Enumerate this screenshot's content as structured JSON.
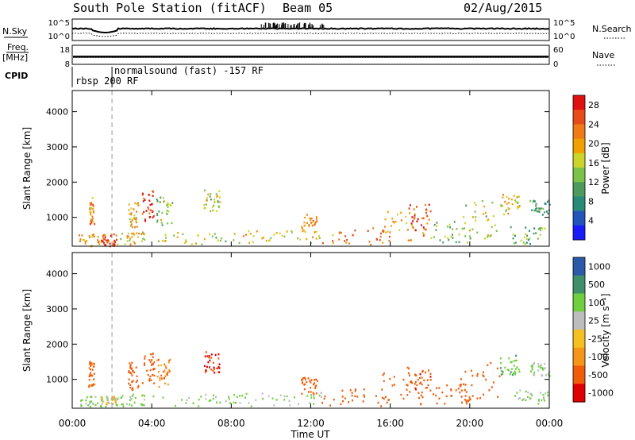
{
  "header": {
    "station": "South Pole Station (fitACF)",
    "beam": "Beam 05",
    "date": "02/Aug/2015"
  },
  "status_panels": {
    "nsky_label": "N.Sky",
    "nsky_ticks": [
      "10^5",
      "10^0"
    ],
    "nsearch_label": "N.Search",
    "nsearch_ticks": [
      "10^5",
      "10^0"
    ],
    "freq_label": "Freq.",
    "freq_unit": "[MHz]",
    "freq_ticks": [
      "18",
      "8"
    ],
    "nave_label": "Nave",
    "nave_ticks": [
      "60",
      "0"
    ],
    "cpid_label": "CPID",
    "cpid_entries": [
      {
        "text": "rbsp 200 RF",
        "start_hour": 0.0
      },
      {
        "text": "normalsound (fast) -157 RF",
        "start_hour": 2.0
      }
    ],
    "freq_mhz": 12.0,
    "nave_level": 22
  },
  "chart_data": [
    {
      "type": "heatmap",
      "title": "",
      "xlabel": "",
      "ylabel": "Slant Range [km]",
      "xlim": [
        0,
        24
      ],
      "ylim": [
        180,
        4600
      ],
      "yticks": [
        "1000",
        "2000",
        "3000",
        "4000"
      ],
      "colorbar": {
        "label": "Power [dB]",
        "ticks": [
          "28",
          "24",
          "20",
          "16",
          "12",
          "8",
          "4"
        ],
        "range": [
          0,
          30
        ]
      },
      "scatter_regions": [
        {
          "x": [
            0.3,
            1.9
          ],
          "y": [
            200,
            550
          ],
          "value": 20
        },
        {
          "x": [
            1.4,
            2.2
          ],
          "y": [
            200,
            550
          ],
          "value": 27
        },
        {
          "x": [
            0.8,
            1.1
          ],
          "y": [
            800,
            1600
          ],
          "value": 22
        },
        {
          "x": [
            2.2,
            3.6
          ],
          "y": [
            250,
            600
          ],
          "value": 18
        },
        {
          "x": [
            3.5,
            4.1
          ],
          "y": [
            900,
            1800
          ],
          "value": 26
        },
        {
          "x": [
            2.8,
            3.3
          ],
          "y": [
            700,
            1500
          ],
          "value": 18
        },
        {
          "x": [
            4.2,
            5.0
          ],
          "y": [
            800,
            1600
          ],
          "value": 14
        },
        {
          "x": [
            4.0,
            8.5
          ],
          "y": [
            250,
            600
          ],
          "value": 16
        },
        {
          "x": [
            6.6,
            7.4
          ],
          "y": [
            1200,
            1800
          ],
          "value": 14
        },
        {
          "x": [
            8.5,
            12.5
          ],
          "y": [
            250,
            650
          ],
          "value": 18
        },
        {
          "x": [
            11.5,
            12.3
          ],
          "y": [
            600,
            1100
          ],
          "value": 22
        },
        {
          "x": [
            12.5,
            16.0
          ],
          "y": [
            250,
            750
          ],
          "value": 22
        },
        {
          "x": [
            15.5,
            17.9
          ],
          "y": [
            300,
            1200
          ],
          "value": 20
        },
        {
          "x": [
            16.8,
            18.0
          ],
          "y": [
            500,
            1400
          ],
          "value": 26
        },
        {
          "x": [
            18.0,
            20.0
          ],
          "y": [
            300,
            900
          ],
          "value": 14
        },
        {
          "x": [
            19.5,
            21.5
          ],
          "y": [
            400,
            1500
          ],
          "value": 16
        },
        {
          "x": [
            21.5,
            22.5
          ],
          "y": [
            1100,
            1700
          ],
          "value": 18
        },
        {
          "x": [
            22.0,
            23.9
          ],
          "y": [
            250,
            750
          ],
          "value": 12
        },
        {
          "x": [
            23.0,
            24.0
          ],
          "y": [
            1100,
            1500
          ],
          "value": 10
        }
      ]
    },
    {
      "type": "heatmap",
      "title": "",
      "xlabel": "Time UT",
      "ylabel": "Slant Range [km]",
      "xlim": [
        0,
        24
      ],
      "ylim": [
        180,
        4600
      ],
      "xticks": [
        "00:00",
        "04:00",
        "08:00",
        "12:00",
        "16:00",
        "20:00",
        "00:00"
      ],
      "yticks": [
        "1000",
        "2000",
        "3000",
        "4000"
      ],
      "colorbar": {
        "label": "Velocity [m s⁻¹]",
        "ticks": [
          "1000",
          "500",
          "100",
          "25",
          "-25",
          "-100",
          "-500",
          "-1000"
        ],
        "range": [
          -1000,
          1000
        ]
      },
      "scatter_regions": [
        {
          "x": [
            0.3,
            2.0
          ],
          "y": [
            200,
            550
          ],
          "value": 150
        },
        {
          "x": [
            1.4,
            2.2
          ],
          "y": [
            300,
            550
          ],
          "value": 40
        },
        {
          "x": [
            0.8,
            1.1
          ],
          "y": [
            800,
            1600
          ],
          "value": -150
        },
        {
          "x": [
            2.2,
            3.6
          ],
          "y": [
            250,
            600
          ],
          "value": 120
        },
        {
          "x": [
            3.5,
            4.1
          ],
          "y": [
            900,
            1800
          ],
          "value": -300
        },
        {
          "x": [
            2.8,
            3.3
          ],
          "y": [
            700,
            1500
          ],
          "value": -200
        },
        {
          "x": [
            4.2,
            5.0
          ],
          "y": [
            800,
            1600
          ],
          "value": -120
        },
        {
          "x": [
            4.0,
            8.5
          ],
          "y": [
            250,
            600
          ],
          "value": 150
        },
        {
          "x": [
            6.6,
            7.4
          ],
          "y": [
            1200,
            1800
          ],
          "value": -600
        },
        {
          "x": [
            8.5,
            12.5
          ],
          "y": [
            250,
            650
          ],
          "value": 120
        },
        {
          "x": [
            11.5,
            12.3
          ],
          "y": [
            600,
            1100
          ],
          "value": -200
        },
        {
          "x": [
            12.5,
            16.0
          ],
          "y": [
            250,
            750
          ],
          "value": -250
        },
        {
          "x": [
            15.5,
            17.9
          ],
          "y": [
            300,
            1200
          ],
          "value": -300
        },
        {
          "x": [
            16.8,
            18.0
          ],
          "y": [
            500,
            1400
          ],
          "value": -400
        },
        {
          "x": [
            18.0,
            20.0
          ],
          "y": [
            300,
            900
          ],
          "value": -200
        },
        {
          "x": [
            19.5,
            21.5
          ],
          "y": [
            400,
            1500
          ],
          "value": -250
        },
        {
          "x": [
            21.5,
            22.5
          ],
          "y": [
            1100,
            1700
          ],
          "value": 400
        },
        {
          "x": [
            22.0,
            23.9
          ],
          "y": [
            250,
            750
          ],
          "value": 150
        },
        {
          "x": [
            23.0,
            24.0
          ],
          "y": [
            1100,
            1500
          ],
          "value": 150
        }
      ]
    }
  ]
}
